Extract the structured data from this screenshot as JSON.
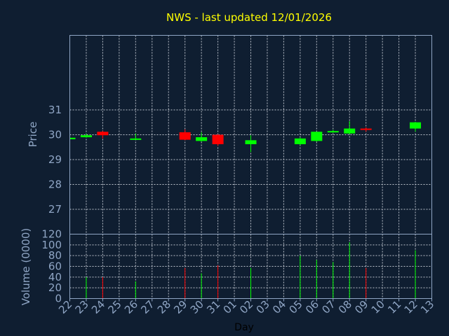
{
  "chart_data": {
    "type": "candlestick",
    "title": "NWS - last updated 12/01/2026",
    "xlabel": "Day",
    "ylabel": "Price",
    "volume_ylabel": "Volume (0000)",
    "grid": true,
    "ylim": [
      26.0,
      34.0
    ],
    "y_ticks": [
      27,
      28,
      29,
      30,
      31
    ],
    "volume_ylim": [
      0,
      120
    ],
    "volume_ticks": [
      0,
      20,
      40,
      60,
      80,
      100,
      120
    ],
    "days": [
      "22",
      "23",
      "24",
      "25",
      "26",
      "27",
      "28",
      "29",
      "30",
      "31",
      "01",
      "02",
      "03",
      "04",
      "05",
      "06",
      "07",
      "08",
      "09",
      "10",
      "11",
      "12",
      "13"
    ],
    "candles": [
      {
        "day": "22",
        "open": 29.82,
        "close": 29.88,
        "high": 29.9,
        "low": 29.8,
        "volume": 0
      },
      {
        "day": "23",
        "open": 29.9,
        "close": 29.98,
        "high": 30.05,
        "low": 29.88,
        "volume": 40
      },
      {
        "day": "24",
        "open": 30.12,
        "close": 29.98,
        "high": 30.15,
        "low": 29.85,
        "volume": 40
      },
      {
        "day": "26",
        "open": 29.82,
        "close": 29.85,
        "high": 30.05,
        "low": 29.8,
        "volume": 32
      },
      {
        "day": "29",
        "open": 30.1,
        "close": 29.8,
        "high": 30.22,
        "low": 29.78,
        "volume": 57
      },
      {
        "day": "30",
        "open": 29.75,
        "close": 29.9,
        "high": 30.1,
        "low": 29.72,
        "volume": 47
      },
      {
        "day": "31",
        "open": 30.0,
        "close": 29.62,
        "high": 30.02,
        "low": 29.55,
        "volume": 62
      },
      {
        "day": "02",
        "open": 29.62,
        "close": 29.78,
        "high": 29.98,
        "low": 29.3,
        "volume": 57
      },
      {
        "day": "05",
        "open": 29.62,
        "close": 29.85,
        "high": 29.9,
        "low": 29.58,
        "volume": 80
      },
      {
        "day": "06",
        "open": 29.75,
        "close": 30.12,
        "high": 30.12,
        "low": 29.72,
        "volume": 72
      },
      {
        "day": "07",
        "open": 30.1,
        "close": 30.15,
        "high": 30.2,
        "low": 30.08,
        "volume": 68
      },
      {
        "day": "08",
        "open": 30.05,
        "close": 30.25,
        "high": 30.55,
        "low": 30.02,
        "volume": 105
      },
      {
        "day": "09",
        "open": 30.25,
        "close": 30.2,
        "high": 30.3,
        "low": 30.12,
        "volume": 57
      },
      {
        "day": "12",
        "open": 30.25,
        "close": 30.5,
        "high": 30.52,
        "low": 30.12,
        "volume": 90
      }
    ],
    "colors": {
      "background": "#0f1e31",
      "up": "#00ff00",
      "down": "#ff0000",
      "title": "#ffff00",
      "tick": "#8fa5c4",
      "grid": "#d9dee6",
      "daylabel": "#000000"
    }
  }
}
